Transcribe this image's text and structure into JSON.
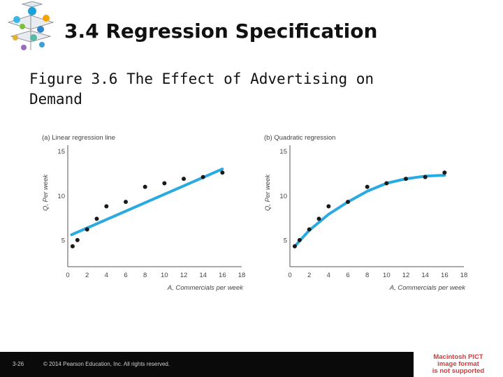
{
  "slide": {
    "title": "3.4 Regression Specification",
    "subtitle": "Figure 3.6  The Effect of Advertising on Demand",
    "slide_number": "3-26",
    "copyright": "© 2014 Pearson Education, Inc. All rights reserved.",
    "pict_notice": [
      "Macintosh PICT",
      "image format",
      "is not supported"
    ]
  },
  "colors": {
    "fit_line": "#2aaae2",
    "points": "#1a1a1a",
    "footer": "#0a0a0a",
    "pict_text": "#d33a3a"
  },
  "chart_data": [
    {
      "type": "scatter",
      "title": "(a) Linear regression line",
      "xlabel": "A, Commercials per week",
      "ylabel": "Q, Per week",
      "xlim": [
        0,
        18
      ],
      "ylim": [
        2,
        16
      ],
      "xticks": [
        0,
        2,
        4,
        6,
        8,
        10,
        12,
        14,
        16,
        18
      ],
      "yticks": [
        5,
        10,
        15
      ],
      "grid": false,
      "points": {
        "x": [
          0.5,
          1,
          2,
          3,
          4,
          6,
          8,
          10,
          12,
          14,
          16
        ],
        "y": [
          4.3,
          5.0,
          6.2,
          7.4,
          8.8,
          9.3,
          11.0,
          11.4,
          11.9,
          12.1,
          12.6
        ]
      },
      "fit": {
        "type": "linear",
        "x": [
          0.4,
          16
        ],
        "y": [
          5.6,
          13.0
        ]
      }
    },
    {
      "type": "scatter",
      "title": "(b) Quadratic regression",
      "xlabel": "A, Commercials per week",
      "ylabel": "Q, Per week",
      "xlim": [
        0,
        18
      ],
      "ylim": [
        2,
        16
      ],
      "xticks": [
        0,
        2,
        4,
        6,
        8,
        10,
        12,
        14,
        16,
        18
      ],
      "yticks": [
        5,
        10,
        15
      ],
      "grid": false,
      "points": {
        "x": [
          0.5,
          1,
          2,
          3,
          4,
          6,
          8,
          10,
          12,
          14,
          16
        ],
        "y": [
          4.3,
          5.0,
          6.2,
          7.4,
          8.8,
          9.3,
          11.0,
          11.4,
          11.9,
          12.1,
          12.6
        ]
      },
      "fit": {
        "type": "quadratic",
        "x": [
          0.5,
          2,
          4,
          6,
          8,
          10,
          12,
          14,
          16
        ],
        "y": [
          4.3,
          6.1,
          7.9,
          9.3,
          10.5,
          11.4,
          11.9,
          12.2,
          12.3
        ]
      }
    }
  ]
}
